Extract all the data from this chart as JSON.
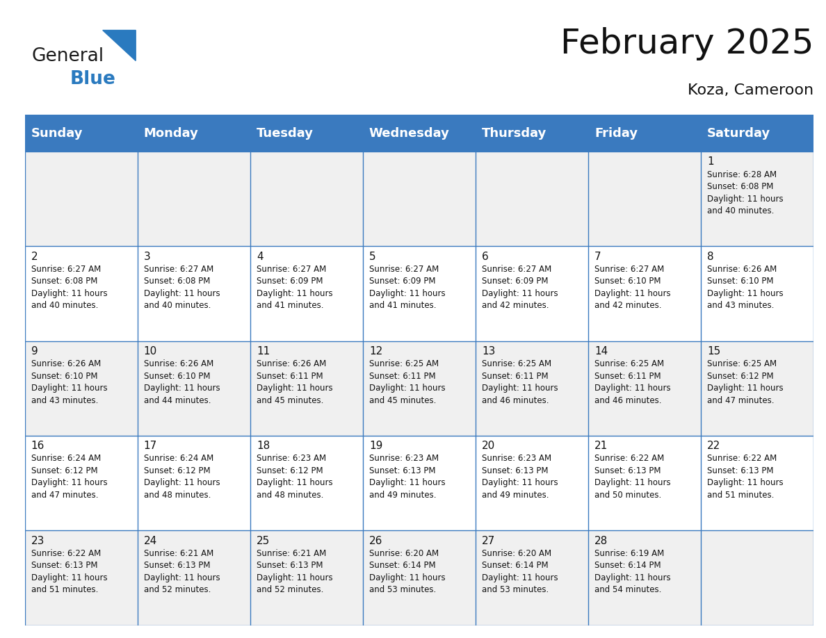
{
  "title": "February 2025",
  "subtitle": "Koza, Cameroon",
  "header_color": "#3a7abf",
  "header_text_color": "#ffffff",
  "cell_bg_even": "#f0f0f0",
  "cell_bg_odd": "#ffffff",
  "line_color": "#3a7abf",
  "day_names": [
    "Sunday",
    "Monday",
    "Tuesday",
    "Wednesday",
    "Thursday",
    "Friday",
    "Saturday"
  ],
  "title_fontsize": 36,
  "subtitle_fontsize": 16,
  "header_fontsize": 13,
  "day_num_fontsize": 11,
  "info_fontsize": 8.5,
  "logo_color_general": "#1a1a1a",
  "logo_color_blue": "#2a7abf",
  "weeks": [
    [
      null,
      null,
      null,
      null,
      null,
      null,
      {
        "day": 1,
        "sunrise": "6:28 AM",
        "sunset": "6:08 PM",
        "daylight": "11 hours\nand 40 minutes."
      }
    ],
    [
      {
        "day": 2,
        "sunrise": "6:27 AM",
        "sunset": "6:08 PM",
        "daylight": "11 hours\nand 40 minutes."
      },
      {
        "day": 3,
        "sunrise": "6:27 AM",
        "sunset": "6:08 PM",
        "daylight": "11 hours\nand 40 minutes."
      },
      {
        "day": 4,
        "sunrise": "6:27 AM",
        "sunset": "6:09 PM",
        "daylight": "11 hours\nand 41 minutes."
      },
      {
        "day": 5,
        "sunrise": "6:27 AM",
        "sunset": "6:09 PM",
        "daylight": "11 hours\nand 41 minutes."
      },
      {
        "day": 6,
        "sunrise": "6:27 AM",
        "sunset": "6:09 PM",
        "daylight": "11 hours\nand 42 minutes."
      },
      {
        "day": 7,
        "sunrise": "6:27 AM",
        "sunset": "6:10 PM",
        "daylight": "11 hours\nand 42 minutes."
      },
      {
        "day": 8,
        "sunrise": "6:26 AM",
        "sunset": "6:10 PM",
        "daylight": "11 hours\nand 43 minutes."
      }
    ],
    [
      {
        "day": 9,
        "sunrise": "6:26 AM",
        "sunset": "6:10 PM",
        "daylight": "11 hours\nand 43 minutes."
      },
      {
        "day": 10,
        "sunrise": "6:26 AM",
        "sunset": "6:10 PM",
        "daylight": "11 hours\nand 44 minutes."
      },
      {
        "day": 11,
        "sunrise": "6:26 AM",
        "sunset": "6:11 PM",
        "daylight": "11 hours\nand 45 minutes."
      },
      {
        "day": 12,
        "sunrise": "6:25 AM",
        "sunset": "6:11 PM",
        "daylight": "11 hours\nand 45 minutes."
      },
      {
        "day": 13,
        "sunrise": "6:25 AM",
        "sunset": "6:11 PM",
        "daylight": "11 hours\nand 46 minutes."
      },
      {
        "day": 14,
        "sunrise": "6:25 AM",
        "sunset": "6:11 PM",
        "daylight": "11 hours\nand 46 minutes."
      },
      {
        "day": 15,
        "sunrise": "6:25 AM",
        "sunset": "6:12 PM",
        "daylight": "11 hours\nand 47 minutes."
      }
    ],
    [
      {
        "day": 16,
        "sunrise": "6:24 AM",
        "sunset": "6:12 PM",
        "daylight": "11 hours\nand 47 minutes."
      },
      {
        "day": 17,
        "sunrise": "6:24 AM",
        "sunset": "6:12 PM",
        "daylight": "11 hours\nand 48 minutes."
      },
      {
        "day": 18,
        "sunrise": "6:23 AM",
        "sunset": "6:12 PM",
        "daylight": "11 hours\nand 48 minutes."
      },
      {
        "day": 19,
        "sunrise": "6:23 AM",
        "sunset": "6:13 PM",
        "daylight": "11 hours\nand 49 minutes."
      },
      {
        "day": 20,
        "sunrise": "6:23 AM",
        "sunset": "6:13 PM",
        "daylight": "11 hours\nand 49 minutes."
      },
      {
        "day": 21,
        "sunrise": "6:22 AM",
        "sunset": "6:13 PM",
        "daylight": "11 hours\nand 50 minutes."
      },
      {
        "day": 22,
        "sunrise": "6:22 AM",
        "sunset": "6:13 PM",
        "daylight": "11 hours\nand 51 minutes."
      }
    ],
    [
      {
        "day": 23,
        "sunrise": "6:22 AM",
        "sunset": "6:13 PM",
        "daylight": "11 hours\nand 51 minutes."
      },
      {
        "day": 24,
        "sunrise": "6:21 AM",
        "sunset": "6:13 PM",
        "daylight": "11 hours\nand 52 minutes."
      },
      {
        "day": 25,
        "sunrise": "6:21 AM",
        "sunset": "6:13 PM",
        "daylight": "11 hours\nand 52 minutes."
      },
      {
        "day": 26,
        "sunrise": "6:20 AM",
        "sunset": "6:14 PM",
        "daylight": "11 hours\nand 53 minutes."
      },
      {
        "day": 27,
        "sunrise": "6:20 AM",
        "sunset": "6:14 PM",
        "daylight": "11 hours\nand 53 minutes."
      },
      {
        "day": 28,
        "sunrise": "6:19 AM",
        "sunset": "6:14 PM",
        "daylight": "11 hours\nand 54 minutes."
      },
      null
    ]
  ]
}
